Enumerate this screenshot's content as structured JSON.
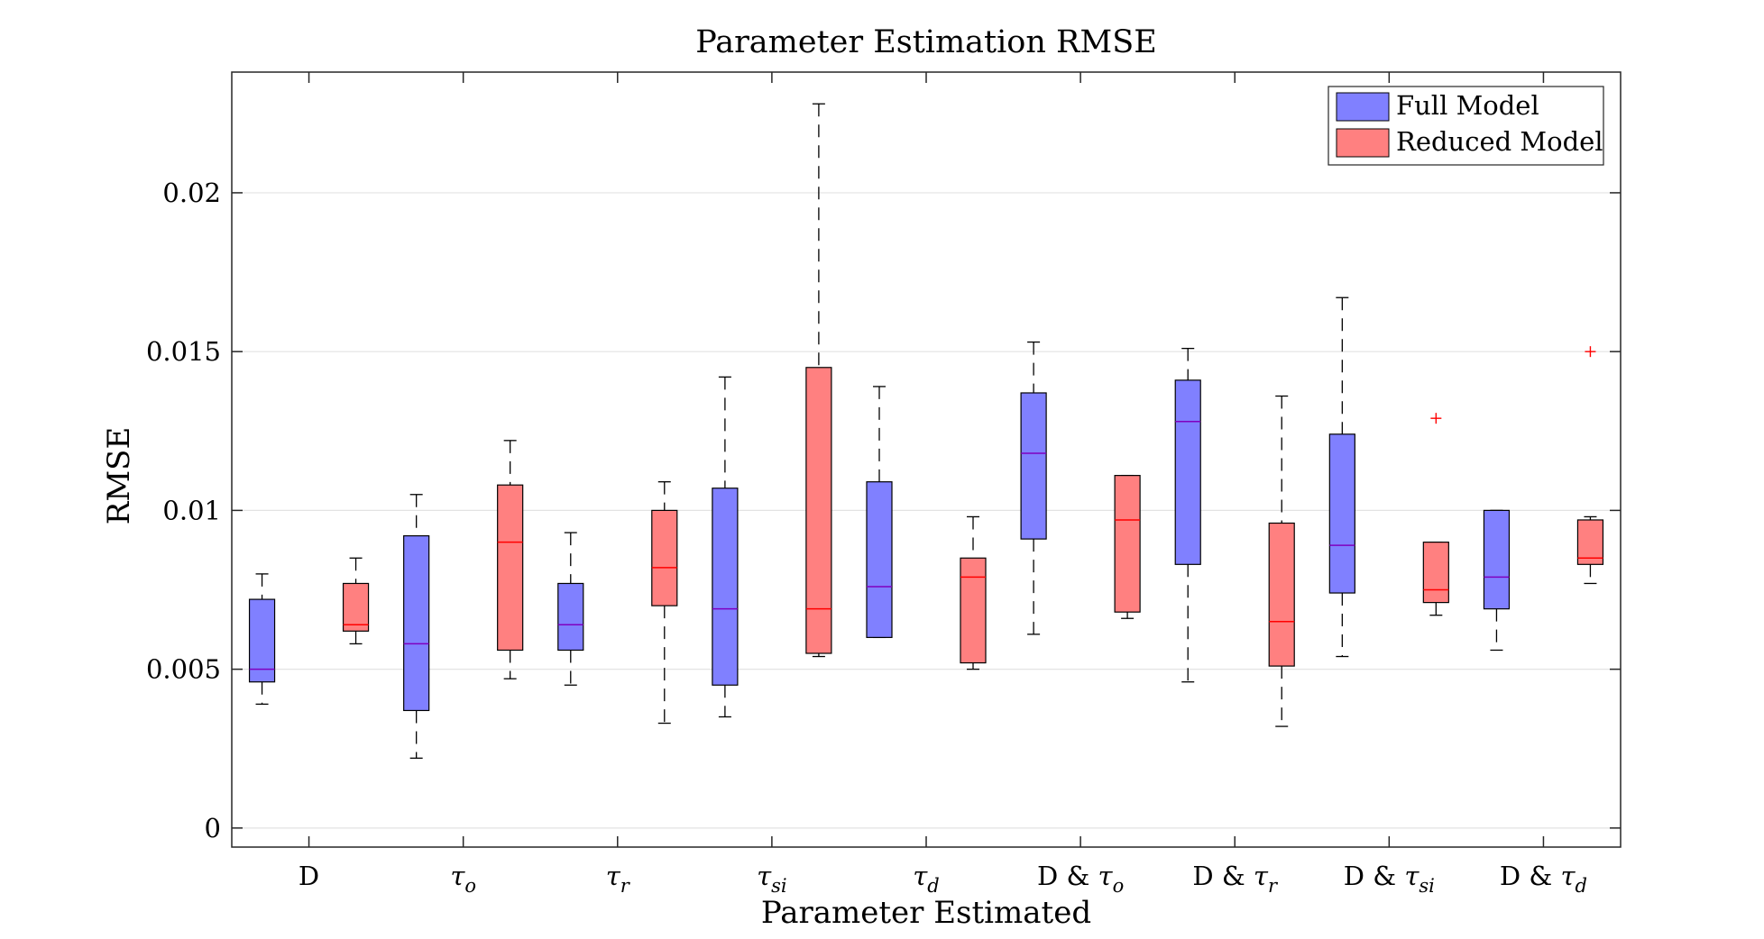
{
  "chart_data": {
    "type": "box",
    "title": "Parameter Estimation RMSE",
    "xlabel": "Parameter Estimated",
    "ylabel": "RMSE",
    "ylim": [
      -0.0006,
      0.0238
    ],
    "yticks": [
      0,
      0.005,
      0.01,
      0.015,
      0.02
    ],
    "ytick_labels": [
      "0",
      "0.005",
      "0.01",
      "0.015",
      "0.02"
    ],
    "grid": "horizontal",
    "legend_position": "top-right",
    "categories": [
      {
        "main": "D",
        "sub": ""
      },
      {
        "main": "τ",
        "sub": "o"
      },
      {
        "main": "τ",
        "sub": "r"
      },
      {
        "main": "τ",
        "sub": "si"
      },
      {
        "main": "τ",
        "sub": "d"
      },
      {
        "main": "D & τ",
        "sub": "o"
      },
      {
        "main": "D & τ",
        "sub": "r"
      },
      {
        "main": "D & τ",
        "sub": "si"
      },
      {
        "main": "D & τ",
        "sub": "d"
      }
    ],
    "series": [
      {
        "name": "Full Model",
        "color": "#8080ff",
        "median_color": "#7f00bf",
        "boxes": [
          {
            "whisker_low": 0.0039,
            "q1": 0.0046,
            "median": 0.005,
            "q3": 0.0072,
            "whisker_high": 0.008,
            "outliers": []
          },
          {
            "whisker_low": 0.0022,
            "q1": 0.0037,
            "median": 0.0058,
            "q3": 0.0092,
            "whisker_high": 0.0105,
            "outliers": []
          },
          {
            "whisker_low": 0.0045,
            "q1": 0.0056,
            "median": 0.0064,
            "q3": 0.0077,
            "whisker_high": 0.0093,
            "outliers": []
          },
          {
            "whisker_low": 0.0035,
            "q1": 0.0045,
            "median": 0.0069,
            "q3": 0.0107,
            "whisker_high": 0.0142,
            "outliers": []
          },
          {
            "whisker_low": 0.006,
            "q1": 0.006,
            "median": 0.0076,
            "q3": 0.0109,
            "whisker_high": 0.0139,
            "outliers": []
          },
          {
            "whisker_low": 0.0061,
            "q1": 0.0091,
            "median": 0.0118,
            "q3": 0.0137,
            "whisker_high": 0.0153,
            "outliers": []
          },
          {
            "whisker_low": 0.0046,
            "q1": 0.0083,
            "median": 0.0128,
            "q3": 0.0141,
            "whisker_high": 0.0151,
            "outliers": []
          },
          {
            "whisker_low": 0.0054,
            "q1": 0.0074,
            "median": 0.0089,
            "q3": 0.0124,
            "whisker_high": 0.0167,
            "outliers": []
          },
          {
            "whisker_low": 0.0056,
            "q1": 0.0069,
            "median": 0.0079,
            "q3": 0.01,
            "whisker_high": 0.01,
            "outliers": []
          }
        ]
      },
      {
        "name": "Reduced Model",
        "color": "#ff8080",
        "median_color": "#ff0000",
        "boxes": [
          {
            "whisker_low": 0.0058,
            "q1": 0.0062,
            "median": 0.0064,
            "q3": 0.0077,
            "whisker_high": 0.0085,
            "outliers": []
          },
          {
            "whisker_low": 0.0047,
            "q1": 0.0056,
            "median": 0.009,
            "q3": 0.0108,
            "whisker_high": 0.0122,
            "outliers": []
          },
          {
            "whisker_low": 0.0033,
            "q1": 0.007,
            "median": 0.0082,
            "q3": 0.01,
            "whisker_high": 0.0109,
            "outliers": []
          },
          {
            "whisker_low": 0.0054,
            "q1": 0.0055,
            "median": 0.0069,
            "q3": 0.0145,
            "whisker_high": 0.0228,
            "outliers": []
          },
          {
            "whisker_low": 0.005,
            "q1": 0.0052,
            "median": 0.0079,
            "q3": 0.0085,
            "whisker_high": 0.0098,
            "outliers": []
          },
          {
            "whisker_low": 0.0066,
            "q1": 0.0068,
            "median": 0.0097,
            "q3": 0.0111,
            "whisker_high": 0.0111,
            "outliers": []
          },
          {
            "whisker_low": 0.0032,
            "q1": 0.0051,
            "median": 0.0065,
            "q3": 0.0096,
            "whisker_high": 0.0136,
            "outliers": []
          },
          {
            "whisker_low": 0.0067,
            "q1": 0.0071,
            "median": 0.0075,
            "q3": 0.009,
            "whisker_high": 0.009,
            "outliers": [
              0.0129
            ]
          },
          {
            "whisker_low": 0.0077,
            "q1": 0.0083,
            "median": 0.0085,
            "q3": 0.0097,
            "whisker_high": 0.0098,
            "outliers": [
              0.015
            ]
          }
        ]
      }
    ]
  }
}
